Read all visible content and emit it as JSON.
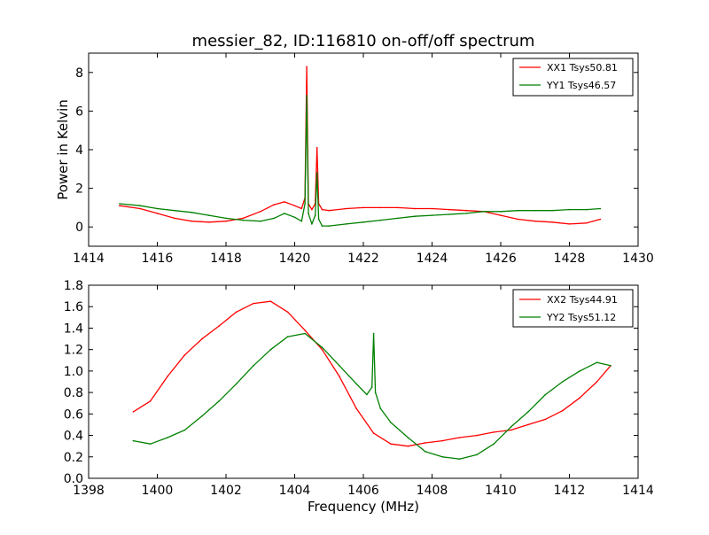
{
  "title": "messier_82, ID:116810 on-off/off spectrum",
  "colors": {
    "XX": "#ff0000",
    "YY": "#008000",
    "axis": "#000000",
    "background": "#ffffff"
  },
  "chart_data": [
    {
      "type": "line",
      "title": "messier_82, ID:116810 on-off/off spectrum",
      "xlabel": "",
      "ylabel": "Power in Kelvin",
      "xlim": [
        1414,
        1430
      ],
      "ylim": [
        -1,
        9
      ],
      "xticks": [
        1414,
        1416,
        1418,
        1420,
        1422,
        1424,
        1426,
        1428,
        1430
      ],
      "yticks": [
        0,
        2,
        4,
        6,
        8
      ],
      "legend_position": "top-right",
      "grid": false,
      "series": [
        {
          "name": "XX1 Tsys50.81",
          "color": "#ff0000",
          "x": [
            1414.9,
            1415.5,
            1416.0,
            1416.5,
            1417.0,
            1417.5,
            1418.0,
            1418.5,
            1419.0,
            1419.4,
            1419.7,
            1420.0,
            1420.2,
            1420.3,
            1420.35,
            1420.4,
            1420.5,
            1420.6,
            1420.65,
            1420.7,
            1420.8,
            1421.0,
            1421.5,
            1422.0,
            1422.5,
            1423.0,
            1423.5,
            1424.0,
            1424.5,
            1425.0,
            1425.5,
            1426.0,
            1426.5,
            1427.0,
            1427.5,
            1428.0,
            1428.5,
            1428.9
          ],
          "y": [
            1.1,
            0.95,
            0.7,
            0.45,
            0.3,
            0.25,
            0.3,
            0.45,
            0.8,
            1.15,
            1.3,
            1.1,
            0.95,
            1.5,
            8.3,
            1.2,
            0.9,
            1.2,
            4.1,
            1.2,
            0.9,
            0.85,
            0.95,
            1.0,
            1.0,
            1.0,
            0.95,
            0.95,
            0.9,
            0.85,
            0.8,
            0.6,
            0.4,
            0.3,
            0.25,
            0.15,
            0.2,
            0.4
          ]
        },
        {
          "name": "YY1 Tsys46.57",
          "color": "#008000",
          "x": [
            1414.9,
            1415.5,
            1416.0,
            1416.5,
            1417.0,
            1417.5,
            1418.0,
            1418.5,
            1419.0,
            1419.4,
            1419.7,
            1420.0,
            1420.2,
            1420.3,
            1420.35,
            1420.4,
            1420.5,
            1420.6,
            1420.65,
            1420.7,
            1420.8,
            1421.0,
            1421.5,
            1422.0,
            1422.5,
            1423.0,
            1423.5,
            1424.0,
            1424.5,
            1425.0,
            1425.5,
            1426.0,
            1426.5,
            1427.0,
            1427.5,
            1428.0,
            1428.5,
            1428.9
          ],
          "y": [
            1.2,
            1.1,
            0.95,
            0.85,
            0.75,
            0.6,
            0.45,
            0.35,
            0.3,
            0.45,
            0.7,
            0.5,
            0.3,
            1.2,
            6.8,
            0.7,
            0.15,
            0.6,
            2.8,
            0.4,
            0.05,
            0.05,
            0.15,
            0.25,
            0.35,
            0.45,
            0.55,
            0.6,
            0.65,
            0.7,
            0.8,
            0.8,
            0.85,
            0.85,
            0.85,
            0.9,
            0.9,
            0.95
          ]
        }
      ]
    },
    {
      "type": "line",
      "title": "",
      "xlabel": "Frequency (MHz)",
      "ylabel": "",
      "xlim": [
        1398,
        1414
      ],
      "ylim": [
        0.0,
        1.8
      ],
      "xticks": [
        1398,
        1400,
        1402,
        1404,
        1406,
        1408,
        1410,
        1412,
        1414
      ],
      "yticks": [
        0.0,
        0.2,
        0.4,
        0.6,
        0.8,
        1.0,
        1.2,
        1.4,
        1.6,
        1.8
      ],
      "legend_position": "top-right",
      "grid": false,
      "series": [
        {
          "name": "XX2 Tsys44.91",
          "color": "#ff0000",
          "x": [
            1399.3,
            1399.8,
            1400.3,
            1400.8,
            1401.3,
            1401.8,
            1402.3,
            1402.8,
            1403.3,
            1403.8,
            1404.3,
            1404.8,
            1405.3,
            1405.8,
            1406.3,
            1406.8,
            1407.3,
            1407.8,
            1408.3,
            1408.8,
            1409.3,
            1409.8,
            1410.3,
            1410.8,
            1411.3,
            1411.8,
            1412.3,
            1412.8,
            1413.2
          ],
          "y": [
            0.62,
            0.72,
            0.95,
            1.15,
            1.3,
            1.42,
            1.55,
            1.63,
            1.65,
            1.55,
            1.38,
            1.2,
            0.95,
            0.65,
            0.42,
            0.32,
            0.3,
            0.33,
            0.35,
            0.38,
            0.4,
            0.43,
            0.45,
            0.5,
            0.55,
            0.63,
            0.75,
            0.9,
            1.05
          ]
        },
        {
          "name": "YY2 Tsys51.12",
          "color": "#008000",
          "x": [
            1399.3,
            1399.8,
            1400.3,
            1400.8,
            1401.3,
            1401.8,
            1402.3,
            1402.8,
            1403.3,
            1403.8,
            1404.3,
            1404.8,
            1405.3,
            1405.8,
            1406.1,
            1406.25,
            1406.3,
            1406.35,
            1406.5,
            1406.8,
            1407.3,
            1407.8,
            1408.3,
            1408.8,
            1409.3,
            1409.8,
            1410.3,
            1410.8,
            1411.3,
            1411.8,
            1412.3,
            1412.8,
            1413.2
          ],
          "y": [
            0.35,
            0.32,
            0.38,
            0.45,
            0.58,
            0.72,
            0.88,
            1.05,
            1.2,
            1.32,
            1.35,
            1.22,
            1.05,
            0.88,
            0.78,
            0.85,
            1.35,
            0.8,
            0.65,
            0.52,
            0.38,
            0.25,
            0.2,
            0.18,
            0.22,
            0.32,
            0.48,
            0.62,
            0.78,
            0.9,
            1.0,
            1.08,
            1.05
          ]
        }
      ]
    }
  ]
}
